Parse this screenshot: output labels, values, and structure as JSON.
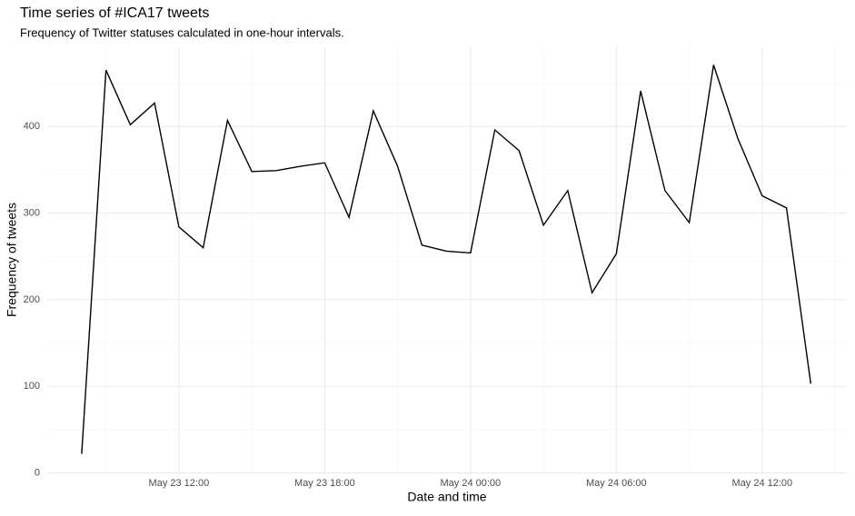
{
  "chart_data": {
    "type": "line",
    "title": "Time series of #ICA17 tweets",
    "subtitle": "Frequency of Twitter statuses calculated in one-hour intervals.",
    "x_label": "Date and time",
    "y_label": "Frequency of tweets",
    "x": [
      "May 23 08:00",
      "May 23 09:00",
      "May 23 10:00",
      "May 23 11:00",
      "May 23 12:00",
      "May 23 13:00",
      "May 23 14:00",
      "May 23 15:00",
      "May 23 16:00",
      "May 23 17:00",
      "May 23 18:00",
      "May 23 19:00",
      "May 23 20:00",
      "May 23 21:00",
      "May 23 22:00",
      "May 23 23:00",
      "May 24 00:00",
      "May 24 01:00",
      "May 24 02:00",
      "May 24 03:00",
      "May 24 04:00",
      "May 24 05:00",
      "May 24 06:00",
      "May 24 07:00",
      "May 24 08:00",
      "May 24 09:00",
      "May 24 10:00",
      "May 24 11:00",
      "May 24 12:00",
      "May 24 13:00",
      "May 24 14:00"
    ],
    "series": [
      {
        "name": "tweets",
        "color": "#000000",
        "values": [
          22,
          465,
          402,
          427,
          284,
          260,
          407,
          348,
          349,
          354,
          358,
          295,
          418,
          354,
          263,
          256,
          254,
          396,
          372,
          286,
          326,
          208,
          253,
          441,
          326,
          289,
          471,
          386,
          320,
          306,
          103
        ]
      }
    ],
    "xlim": [
      "May 23 06:35",
      "May 24 15:29"
    ],
    "xticks": [
      "May 23 12:00",
      "May 23 18:00",
      "May 24 00:00",
      "May 24 06:00",
      "May 24 12:00"
    ],
    "ylim": [
      -1.5,
      492.5
    ],
    "yticks": [
      0,
      100,
      200,
      300,
      400
    ],
    "grid": true,
    "minor_grid": true
  }
}
